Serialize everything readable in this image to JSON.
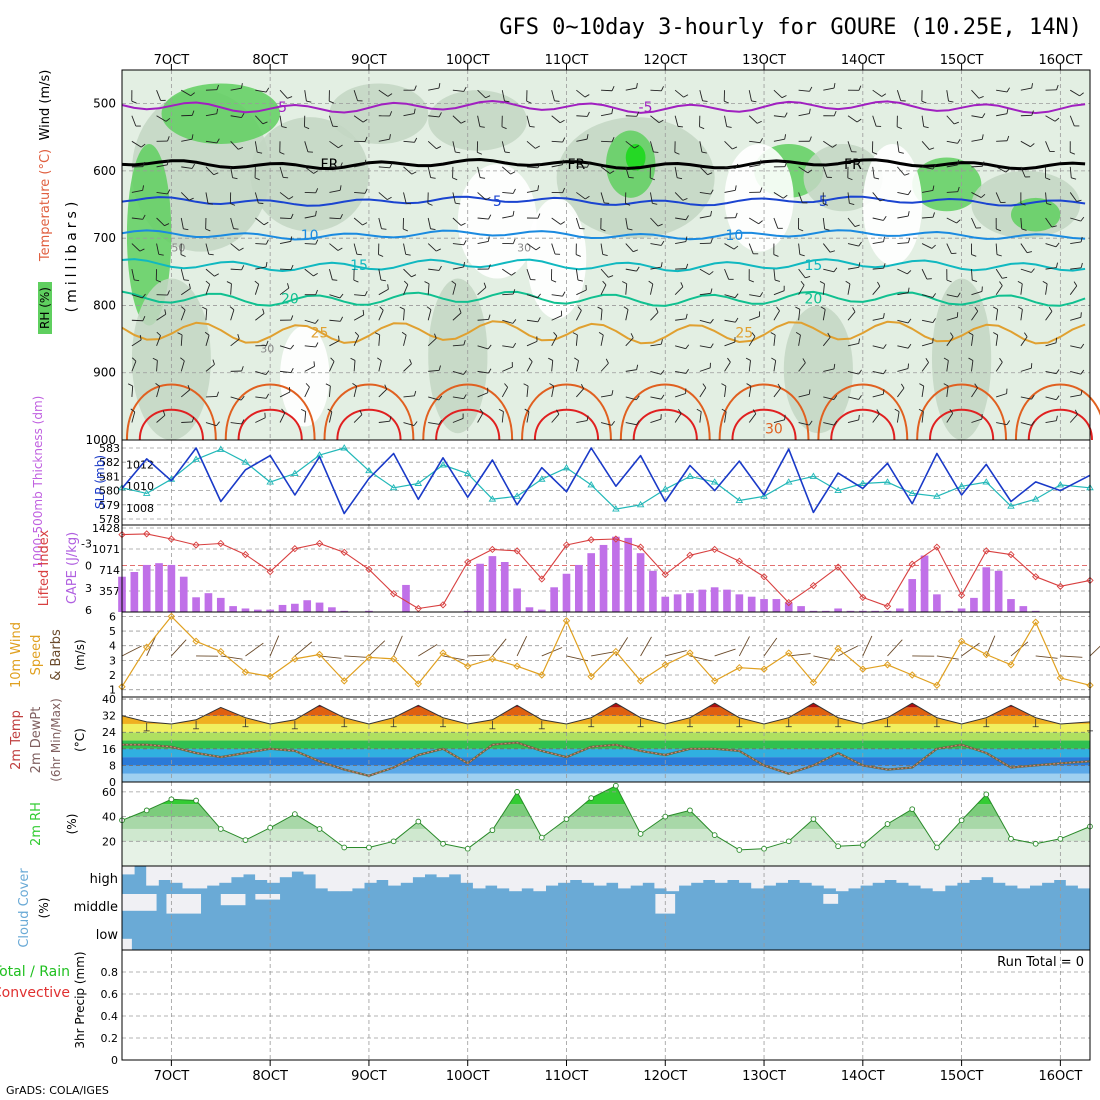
{
  "header": {
    "title": "GFS 0~10day 3-hourly for GOURE (10.25E, 14N)",
    "credit": "GrADS: COLA/IGES"
  },
  "time_axis": {
    "labels": [
      "7OCT",
      "8OCT",
      "9OCT",
      "10OCT",
      "11OCT",
      "12OCT",
      "13OCT",
      "14OCT",
      "15OCT",
      "16OCT"
    ],
    "start_day": 6.5,
    "end_day": 16.3
  },
  "panels": {
    "upper": {
      "label_rh": "RH (%)",
      "label_temp": "Temperature (°C)",
      "label_wind": "Wind (m/s)",
      "ylabel": "(millibars)",
      "yticks": [
        500,
        600,
        700,
        800,
        900,
        1000
      ],
      "ylim": [
        450,
        1000
      ],
      "isotherm_labels": [
        "-5",
        "FR",
        "5",
        "10",
        "15",
        "20",
        "25",
        "30"
      ],
      "rh_labels": [
        "30",
        "50"
      ]
    },
    "thickness": {
      "label": "1000-500mb Thickness (dm)",
      "label_slp": "SLP (mb)",
      "left_ticks": [
        578,
        579,
        580,
        581,
        582,
        583
      ],
      "right_ticks": [
        1008,
        1010,
        1012
      ]
    },
    "cape": {
      "label_li": "Lifted Index",
      "label_cape": "CAPE (J/kg)",
      "li_ticks": [
        "-3",
        "0",
        "3",
        "6"
      ],
      "cape_ticks": [
        "357",
        "714",
        "1071",
        "1428"
      ]
    },
    "wind10": {
      "label": "10m Wind Speed & Barbs",
      "ylabel": "(m/s)",
      "yticks": [
        1,
        2,
        3,
        4,
        5,
        6
      ]
    },
    "temp2m": {
      "label": "2m Temp 2m DewPt (6hr Min/Max)",
      "ylabel": "(°C)",
      "yticks": [
        0,
        8,
        16,
        24,
        32,
        40
      ]
    },
    "rh2m": {
      "label": "2m RH",
      "ylabel": "(%)",
      "yticks": [
        20,
        40,
        60
      ]
    },
    "cloud": {
      "label": "Cloud Cover",
      "ylabel": "(%)",
      "levels": [
        "high",
        "middle",
        "low"
      ]
    },
    "precip": {
      "label_total": "Total / Rain",
      "label_conv": "Convective",
      "ylabel": "3hr Precip (mm)",
      "yticks": [
        "0",
        "0.2",
        "0.4",
        "0.6",
        "0.8"
      ],
      "run_total": "Run Total = 0"
    }
  },
  "chart_data": [
    {
      "type": "line",
      "name": "1000-500mb thickness (dm)",
      "x_days": [
        6.5,
        6.75,
        7.0,
        7.25,
        7.5,
        7.75,
        8.0,
        8.25,
        8.5,
        8.75,
        9.0,
        9.25,
        9.5,
        9.75,
        10.0,
        10.25,
        10.5,
        10.75,
        11.0,
        11.25,
        11.5,
        11.75,
        12.0,
        12.25,
        12.5,
        12.75,
        13.0,
        13.25,
        13.5,
        13.75,
        14.0,
        14.25,
        14.5,
        14.75,
        15.0,
        15.25,
        15.5,
        15.75,
        16.0,
        16.3
      ],
      "y": [
        580.2,
        579.8,
        580.8,
        582.2,
        582.9,
        582.0,
        580.6,
        581.2,
        582.5,
        583.0,
        581.4,
        580.2,
        580.5,
        581.8,
        581.2,
        579.4,
        579.6,
        580.8,
        581.6,
        580.4,
        578.7,
        579.0,
        580.1,
        581.0,
        580.6,
        579.3,
        579.6,
        580.6,
        581.0,
        580.0,
        580.5,
        580.6,
        579.8,
        579.6,
        580.3,
        580.6,
        578.9,
        579.4,
        580.4,
        580.2
      ]
    },
    {
      "type": "line",
      "name": "SLP (mb)",
      "x_days": [
        6.5,
        6.75,
        7.0,
        7.25,
        7.5,
        7.75,
        8.0,
        8.25,
        8.5,
        8.75,
        9.0,
        9.25,
        9.5,
        9.75,
        10.0,
        10.25,
        10.5,
        10.75,
        11.0,
        11.25,
        11.5,
        11.75,
        12.0,
        12.25,
        12.5,
        12.75,
        13.0,
        13.25,
        13.5,
        13.75,
        14.0,
        14.25,
        14.5,
        14.75,
        15.0,
        15.25,
        15.5,
        15.75,
        16.0,
        16.3
      ],
      "y": [
        1009.8,
        1012.5,
        1010.5,
        1013.5,
        1008.6,
        1011.5,
        1012.8,
        1009.2,
        1012.7,
        1007.5,
        1010.7,
        1013.0,
        1008.8,
        1012.6,
        1009.0,
        1012.4,
        1008.3,
        1011.7,
        1009.5,
        1013.5,
        1010.0,
        1012.8,
        1008.6,
        1011.9,
        1009.6,
        1012.3,
        1009.2,
        1013.4,
        1007.6,
        1011.2,
        1009.8,
        1012.1,
        1008.4,
        1013.0,
        1009.2,
        1012.0,
        1008.6,
        1010.4,
        1009.6,
        1011.0
      ]
    },
    {
      "type": "line",
      "name": "Lifted Index",
      "x_days": [
        6.5,
        6.75,
        7.0,
        7.25,
        7.5,
        7.75,
        8.0,
        8.25,
        8.5,
        8.75,
        9.0,
        9.25,
        9.5,
        9.75,
        10.0,
        10.25,
        10.5,
        10.75,
        11.0,
        11.25,
        11.5,
        11.75,
        12.0,
        12.25,
        12.5,
        12.75,
        13.0,
        13.25,
        13.5,
        13.75,
        14.0,
        14.25,
        14.5,
        14.75,
        15.0,
        15.25,
        15.5,
        15.75,
        16.0,
        16.3
      ],
      "y": [
        -4.2,
        -4.3,
        -3.6,
        -2.8,
        -3.0,
        -1.5,
        0.8,
        -2.3,
        -3.0,
        -1.8,
        0.5,
        3.8,
        5.8,
        5.3,
        -0.5,
        -2.2,
        -2.0,
        1.8,
        -2.8,
        -3.5,
        -3.6,
        -2.5,
        1.2,
        -1.4,
        -2.2,
        -0.6,
        1.5,
        5.0,
        2.7,
        0.2,
        4.3,
        5.5,
        -0.2,
        -2.5,
        4.0,
        -2.0,
        -1.5,
        1.5,
        2.8,
        2.0
      ]
    },
    {
      "type": "bar",
      "name": "CAPE (J/kg)",
      "x_days": [
        6.5,
        6.625,
        6.75,
        6.875,
        7.0,
        7.125,
        7.25,
        7.375,
        7.5,
        7.625,
        7.75,
        7.875,
        8.0,
        8.125,
        8.25,
        8.375,
        8.5,
        8.625,
        8.75,
        9.0,
        9.375,
        10.0,
        10.125,
        10.25,
        10.375,
        10.5,
        10.625,
        10.75,
        10.875,
        11.0,
        11.125,
        11.25,
        11.375,
        11.5,
        11.625,
        11.75,
        11.875,
        12.0,
        12.125,
        12.25,
        12.375,
        12.5,
        12.625,
        12.75,
        12.875,
        13.0,
        13.125,
        13.25,
        13.375,
        13.5,
        13.625,
        13.75,
        13.875,
        14.0,
        14.125,
        14.25,
        14.375,
        14.5,
        14.625,
        14.75,
        14.875,
        15.0,
        15.125,
        15.25,
        15.375,
        15.5,
        15.625,
        15.75
      ],
      "y": [
        600,
        680,
        800,
        830,
        800,
        600,
        250,
        320,
        240,
        100,
        60,
        40,
        40,
        120,
        140,
        200,
        160,
        80,
        20,
        20,
        460,
        20,
        820,
        950,
        850,
        400,
        80,
        40,
        420,
        650,
        800,
        1000,
        1140,
        1280,
        1260,
        1000,
        700,
        260,
        300,
        320,
        380,
        420,
        380,
        300,
        260,
        220,
        220,
        160,
        100,
        20,
        20,
        60,
        20,
        20,
        20,
        20,
        60,
        560,
        960,
        300,
        20,
        60,
        240,
        760,
        700,
        220,
        100,
        20
      ]
    },
    {
      "type": "line",
      "name": "10m wind speed (m/s)",
      "x_days": [
        6.5,
        6.75,
        7.0,
        7.25,
        7.5,
        7.75,
        8.0,
        8.25,
        8.5,
        8.75,
        9.0,
        9.25,
        9.5,
        9.75,
        10.0,
        10.25,
        10.5,
        10.75,
        11.0,
        11.25,
        11.5,
        11.75,
        12.0,
        12.25,
        12.5,
        12.75,
        13.0,
        13.25,
        13.5,
        13.75,
        14.0,
        14.25,
        14.5,
        14.75,
        15.0,
        15.25,
        15.5,
        15.75,
        16.0,
        16.3
      ],
      "y": [
        1.2,
        3.9,
        6.0,
        4.3,
        3.6,
        2.2,
        1.9,
        3.1,
        3.4,
        1.6,
        3.2,
        3.1,
        1.4,
        3.5,
        2.6,
        3.1,
        2.6,
        2.0,
        5.7,
        1.9,
        3.6,
        1.6,
        2.7,
        3.5,
        1.6,
        2.5,
        2.4,
        3.5,
        1.5,
        3.8,
        2.4,
        2.7,
        2.0,
        1.3,
        4.3,
        3.4,
        2.7,
        5.6,
        1.8,
        1.3
      ]
    },
    {
      "type": "area",
      "name": "2m temperature (°C)",
      "x_days": [
        6.5,
        6.75,
        7.0,
        7.25,
        7.5,
        7.75,
        8.0,
        8.25,
        8.5,
        8.75,
        9.0,
        9.25,
        9.5,
        9.75,
        10.0,
        10.25,
        10.5,
        10.75,
        11.0,
        11.25,
        11.5,
        11.75,
        12.0,
        12.25,
        12.5,
        12.75,
        13.0,
        13.25,
        13.5,
        13.75,
        14.0,
        14.25,
        14.5,
        14.75,
        15.0,
        15.25,
        15.5,
        15.75,
        16.0,
        16.3
      ],
      "y": [
        32,
        29,
        28,
        30,
        36,
        31,
        28,
        30,
        37,
        31,
        28,
        31,
        37,
        31,
        28,
        30,
        37,
        30,
        28,
        31,
        38,
        31,
        28,
        31,
        38,
        31,
        28,
        31,
        38,
        31,
        28,
        31,
        38,
        31,
        28,
        31,
        37,
        31,
        28,
        29
      ]
    },
    {
      "type": "line",
      "name": "2m dew point (°C)",
      "x_days": [
        6.5,
        6.75,
        7.0,
        7.25,
        7.5,
        7.75,
        8.0,
        8.25,
        8.5,
        8.75,
        9.0,
        9.25,
        9.5,
        9.75,
        10.0,
        10.25,
        10.5,
        10.75,
        11.0,
        11.25,
        11.5,
        11.75,
        12.0,
        12.25,
        12.5,
        12.75,
        13.0,
        13.25,
        13.5,
        13.75,
        14.0,
        14.25,
        14.5,
        14.75,
        15.0,
        15.25,
        15.5,
        15.75,
        16.0,
        16.3
      ],
      "y": [
        18,
        18,
        17,
        14,
        12,
        14,
        16,
        15,
        10,
        6,
        3,
        7,
        13,
        16,
        9,
        18,
        19,
        15,
        12,
        17,
        18,
        15,
        13,
        16,
        16,
        15,
        8,
        4,
        8,
        14,
        8,
        6,
        7,
        16,
        18,
        14,
        7,
        8,
        9,
        10
      ]
    },
    {
      "type": "area",
      "name": "2m RH (%)",
      "x_days": [
        6.5,
        6.75,
        7.0,
        7.25,
        7.5,
        7.75,
        8.0,
        8.25,
        8.5,
        8.75,
        9.0,
        9.25,
        9.5,
        9.75,
        10.0,
        10.25,
        10.5,
        10.75,
        11.0,
        11.25,
        11.5,
        11.75,
        12.0,
        12.25,
        12.5,
        12.75,
        13.0,
        13.25,
        13.5,
        13.75,
        14.0,
        14.25,
        14.5,
        14.75,
        15.0,
        15.25,
        15.5,
        15.75,
        16.0,
        16.3
      ],
      "y": [
        37,
        45,
        54,
        53,
        30,
        21,
        31,
        42,
        30,
        15,
        15,
        20,
        36,
        18,
        14,
        29,
        60,
        23,
        38,
        55,
        65,
        26,
        40,
        45,
        25,
        13,
        14,
        20,
        38,
        16,
        17,
        34,
        46,
        15,
        37,
        58,
        22,
        18,
        22,
        32
      ]
    },
    {
      "type": "table",
      "name": "Cloud cover",
      "series": [
        {
          "name": "high",
          "description": "mostly overcast with intermittent breaks"
        },
        {
          "name": "middle",
          "description": "overcast with occasional clear intervals"
        },
        {
          "name": "low",
          "description": "overcast"
        }
      ]
    },
    {
      "type": "bar",
      "name": "3hr precipitation (mm)",
      "x_days": [
        6.5,
        16.3
      ],
      "y": [
        0,
        0
      ],
      "ylim": [
        0,
        1
      ]
    }
  ],
  "colors": {
    "frame": "#000000",
    "grid": "#9a9a9a",
    "rh_light": "#e3efe3",
    "rh_mid": "#c3d6c3",
    "rh_dark": "#9fb59f",
    "rh_moist": "#5fcf5f",
    "rh_wet": "#19d919",
    "iso_neg5": "#a020c0",
    "iso_fr": "#000000",
    "iso_5": "#1a44d0",
    "iso_10": "#1a8ae0",
    "iso_15": "#10b8c0",
    "iso_20": "#10c090",
    "iso_25": "#e0a030",
    "iso_30": "#e06020",
    "iso_35": "#e02020",
    "thickness": "#22b8b8",
    "slp": "#1a3ac8",
    "li": "#d84040",
    "cape": "#c070e8",
    "wind10": "#e0a020",
    "barb": "#6a4a2a",
    "rh2m": "#33cc33",
    "cloud": "#6aaad6",
    "cloud_clear": "#f0f0f4",
    "precip_total": "#20c020",
    "precip_conv": "#e03030"
  }
}
